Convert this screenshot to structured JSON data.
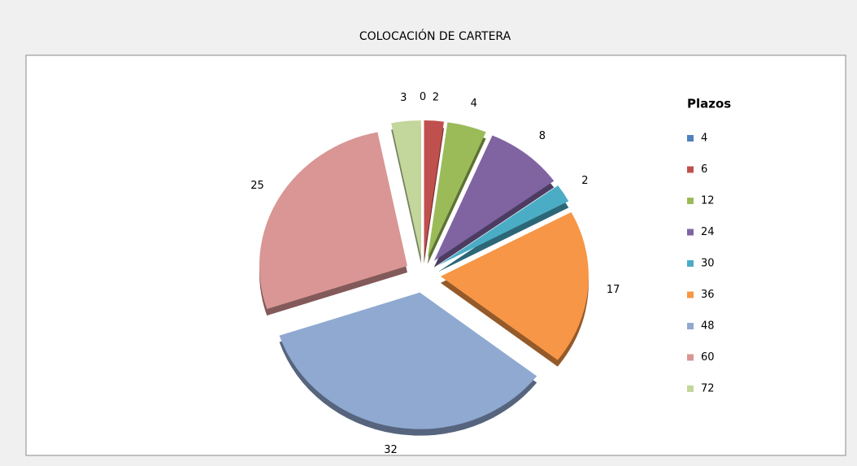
{
  "chart_data": {
    "type": "pie",
    "title": "COLOCACIÓN DE CARTERA",
    "legend_title": "Plazos",
    "categories": [
      "4",
      "6",
      "12",
      "24",
      "30",
      "36",
      "48",
      "60",
      "72"
    ],
    "values": [
      0,
      2,
      4,
      8,
      2,
      17,
      32,
      25,
      3
    ],
    "colors": [
      "#4f81bd",
      "#c0504d",
      "#9bbb59",
      "#8064a2",
      "#4bacc6",
      "#f79646",
      "#8fa9d1",
      "#d99694",
      "#c3d69b"
    ],
    "legend": "right"
  }
}
